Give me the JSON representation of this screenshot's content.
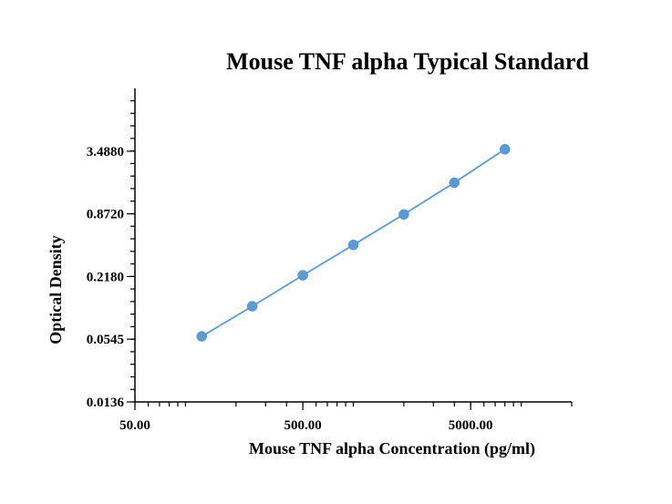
{
  "chart_data": {
    "type": "scatter",
    "title": "Mouse TNF alpha Typical Standard",
    "xlabel": "Mouse TNF alpha Concentration (pg/ml)",
    "ylabel": "Optical Density",
    "x_scale": "log",
    "y_scale": "log",
    "xlim": [
      50,
      20000
    ],
    "ylim": [
      0.0136,
      14
    ],
    "x_ticks": [
      50,
      500,
      5000
    ],
    "x_tick_labels": [
      "50.00",
      "500.00",
      "5000.00"
    ],
    "y_ticks": [
      0.0136,
      0.0545,
      0.218,
      0.872,
      3.488
    ],
    "y_tick_labels": [
      "0.0136",
      "0.0545",
      "0.2180",
      "0.8720",
      "3.4880"
    ],
    "grid": false,
    "series": [
      {
        "color": "#5b9bd5",
        "points": [
          {
            "x": 125,
            "y": 0.058
          },
          {
            "x": 250,
            "y": 0.113
          },
          {
            "x": 500,
            "y": 0.224
          },
          {
            "x": 1000,
            "y": 0.439
          },
          {
            "x": 2000,
            "y": 0.862
          },
          {
            "x": 4000,
            "y": 1.74
          },
          {
            "x": 8000,
            "y": 3.64
          }
        ]
      }
    ]
  }
}
